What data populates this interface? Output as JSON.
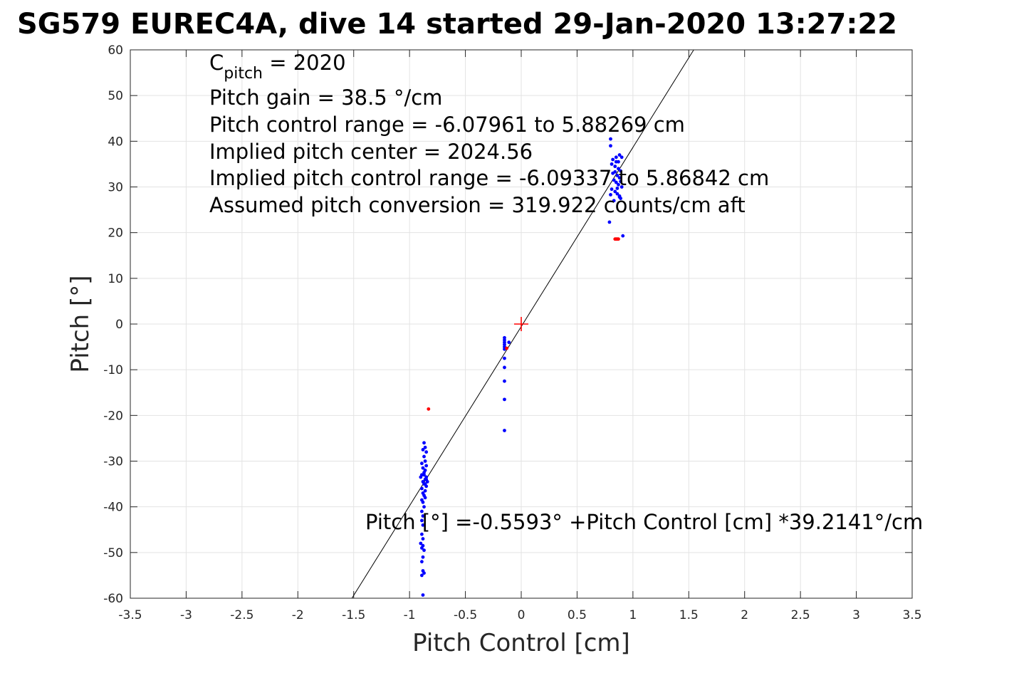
{
  "chart_data": {
    "type": "scatter",
    "title": "SG579 EUREC4A, dive 14 started 29-Jan-2020 13:27:22",
    "xlabel": "Pitch Control [cm]",
    "ylabel": "Pitch [°]",
    "xlim": [
      -3.5,
      3.5
    ],
    "ylim": [
      -60,
      60
    ],
    "x_ticks": [
      -3.5,
      -3,
      -2.5,
      -2,
      -1.5,
      -1,
      -0.5,
      0,
      0.5,
      1,
      1.5,
      2,
      2.5,
      3,
      3.5
    ],
    "y_ticks": [
      -60,
      -50,
      -40,
      -30,
      -20,
      -10,
      0,
      10,
      20,
      30,
      40,
      50,
      60
    ],
    "x_tick_labels": [
      "-3.5",
      "-3",
      "-2.5",
      "-2",
      "-1.5",
      "-1",
      "-0.5",
      "0",
      "0.5",
      "1",
      "1.5",
      "2",
      "2.5",
      "3",
      "3.5"
    ],
    "y_tick_labels": [
      "-60",
      "-50",
      "-40",
      "-30",
      "-20",
      "-10",
      "0",
      "10",
      "20",
      "30",
      "40",
      "50",
      "60"
    ],
    "grid": true,
    "annotations": {
      "c_pitch_prefix": "C",
      "c_pitch_sub": "pitch",
      "c_pitch_suffix": " = 2020",
      "pitch_gain": "Pitch gain = 38.5 °/cm",
      "pitch_control_range": "Pitch control range = -6.07961 to 5.88269 cm",
      "implied_center": "Implied pitch center = 2024.56",
      "implied_range": "Implied pitch control range = -6.09337 to 5.86842 cm",
      "assumed_conversion": "Assumed pitch conversion = 319.922 counts/cm aft",
      "fit_equation": "Pitch [°] =-0.5593° +Pitch Control [cm] *39.2141°/cm"
    },
    "fit_line": {
      "intercept": -0.5593,
      "slope": 39.2141
    },
    "center_marker": {
      "x": 0,
      "y": 0,
      "color": "#ff0000"
    },
    "series": [
      {
        "color": "#0000ff",
        "points": [
          [
            -0.87,
            -26
          ],
          [
            -0.86,
            -27
          ],
          [
            -0.88,
            -27.5
          ],
          [
            -0.85,
            -28
          ],
          [
            -0.87,
            -29
          ],
          [
            -0.86,
            -30
          ],
          [
            -0.89,
            -30.5
          ],
          [
            -0.85,
            -31
          ],
          [
            -0.88,
            -31.5
          ],
          [
            -0.86,
            -32
          ],
          [
            -0.87,
            -32.5
          ],
          [
            -0.89,
            -33
          ],
          [
            -0.85,
            -33.5
          ],
          [
            -0.86,
            -34
          ],
          [
            -0.88,
            -34.5
          ],
          [
            -0.87,
            -35
          ],
          [
            -0.85,
            -35.5
          ],
          [
            -0.89,
            -36
          ],
          [
            -0.86,
            -36.5
          ],
          [
            -0.88,
            -37
          ],
          [
            -0.87,
            -37.5
          ],
          [
            -0.86,
            -38
          ],
          [
            -0.89,
            -38.5
          ],
          [
            -0.88,
            -39
          ],
          [
            -0.87,
            -40
          ],
          [
            -0.89,
            -41
          ],
          [
            -0.88,
            -42
          ],
          [
            -0.89,
            -43
          ],
          [
            -0.88,
            -44
          ],
          [
            -0.89,
            -46
          ],
          [
            -0.88,
            -47
          ],
          [
            -0.9,
            -48
          ],
          [
            -0.88,
            -48.5
          ],
          [
            -0.89,
            -49
          ],
          [
            -0.87,
            -49.5
          ],
          [
            -0.88,
            -51
          ],
          [
            -0.89,
            -52
          ],
          [
            -0.88,
            -54
          ],
          [
            -0.87,
            -54.5
          ],
          [
            -0.89,
            -55
          ],
          [
            -0.88,
            -59.3
          ],
          [
            -0.87,
            -33
          ],
          [
            -0.86,
            -35
          ],
          [
            -0.85,
            -34
          ],
          [
            -0.9,
            -33.5
          ],
          [
            -0.84,
            -34.5
          ],
          [
            -0.15,
            -3
          ],
          [
            -0.15,
            -3.5
          ],
          [
            -0.15,
            -4
          ],
          [
            -0.15,
            -4.5
          ],
          [
            -0.15,
            -5
          ],
          [
            -0.15,
            -5.5
          ],
          [
            -0.11,
            -4
          ],
          [
            -0.15,
            -7.5
          ],
          [
            -0.15,
            -9.5
          ],
          [
            -0.15,
            -12.5
          ],
          [
            -0.15,
            -16.5
          ],
          [
            -0.15,
            -23.3
          ],
          [
            0.8,
            40.5
          ],
          [
            0.8,
            39
          ],
          [
            0.79,
            22.3
          ],
          [
            0.91,
            19.3
          ],
          [
            0.82,
            36
          ],
          [
            0.85,
            35.5
          ],
          [
            0.88,
            37
          ],
          [
            0.9,
            36.5
          ],
          [
            0.81,
            35
          ],
          [
            0.84,
            34.5
          ],
          [
            0.87,
            34
          ],
          [
            0.89,
            33.5
          ],
          [
            0.82,
            33
          ],
          [
            0.86,
            32.5
          ],
          [
            0.88,
            32
          ],
          [
            0.83,
            31.5
          ],
          [
            0.85,
            31
          ],
          [
            0.87,
            30.5
          ],
          [
            0.9,
            30
          ],
          [
            0.81,
            29.5
          ],
          [
            0.84,
            29
          ],
          [
            0.86,
            28.5
          ],
          [
            0.88,
            28
          ],
          [
            0.89,
            27.5
          ],
          [
            0.83,
            27
          ],
          [
            0.8,
            28.3
          ],
          [
            0.85,
            36.5
          ],
          [
            0.87,
            35.5
          ],
          [
            0.84,
            33.3
          ],
          [
            0.89,
            31.2
          ],
          [
            0.86,
            29.7
          ],
          [
            0.88,
            27.8
          ]
        ]
      },
      {
        "color": "#ff0000",
        "points": [
          [
            -0.83,
            -18.6
          ],
          [
            -0.13,
            -5.3
          ],
          [
            0.84,
            18.6
          ],
          [
            0.85,
            18.6
          ],
          [
            0.86,
            18.6
          ],
          [
            0.87,
            18.6
          ]
        ]
      }
    ]
  }
}
